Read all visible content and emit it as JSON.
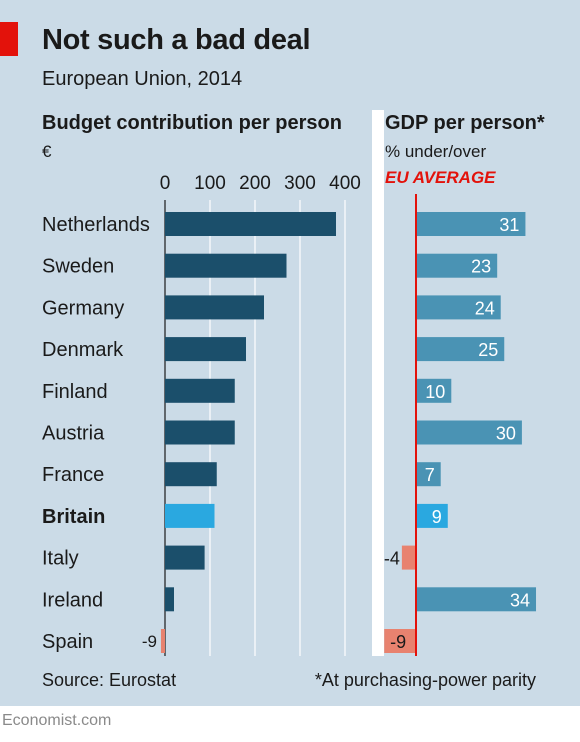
{
  "title": "Not such a bad deal",
  "subtitle": "European Union, 2014",
  "left_panel": {
    "title": "Budget contribution per person",
    "unit": "€"
  },
  "right_panel": {
    "title": "GDP per person*",
    "subtitle": "% under/over",
    "reference_label": "EU AVERAGE"
  },
  "source": "Source: Eurostat",
  "footnote": "*At purchasing-power parity",
  "brand": "Economist.com",
  "colors": {
    "bar_left": "#1b4f6b",
    "bar_right": "#4a93b4",
    "highlight": "#2aa8e0",
    "negative": "#e8826f",
    "reference_line": "#e3120b",
    "background": "#cbdbe7"
  },
  "chart_data": [
    {
      "type": "bar",
      "orientation": "horizontal",
      "title": "Budget contribution per person",
      "ylabel": "€",
      "categories": [
        "Netherlands",
        "Sweden",
        "Germany",
        "Denmark",
        "Finland",
        "Austria",
        "France",
        "Britain",
        "Italy",
        "Ireland",
        "Spain"
      ],
      "values": [
        380,
        270,
        220,
        180,
        155,
        155,
        115,
        110,
        88,
        20,
        -9
      ],
      "xlim": [
        0,
        400
      ],
      "xticks": [
        0,
        100,
        200,
        300,
        400
      ],
      "highlight": "Britain",
      "data_labels": {
        "Spain": "-9"
      },
      "grid": true
    },
    {
      "type": "bar",
      "orientation": "horizontal",
      "title": "GDP per person*",
      "xlabel": "% under/over",
      "categories": [
        "Netherlands",
        "Sweden",
        "Germany",
        "Denmark",
        "Finland",
        "Austria",
        "France",
        "Britain",
        "Italy",
        "Ireland",
        "Spain"
      ],
      "values": [
        31,
        23,
        24,
        25,
        10,
        30,
        7,
        9,
        -4,
        34,
        -9
      ],
      "data_labels": [
        "31",
        "23",
        "24",
        "25",
        "10",
        "30",
        "7",
        "9",
        "-4",
        "34",
        "-9"
      ],
      "reference": 0,
      "highlight": "Britain"
    }
  ]
}
